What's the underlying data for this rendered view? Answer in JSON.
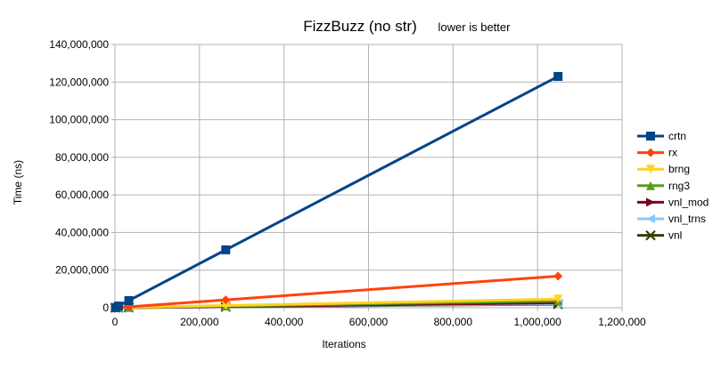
{
  "chart_data": {
    "type": "line",
    "title": "FizzBuzz (no str)",
    "subtitle": "lower is better",
    "xlabel": "Iterations",
    "ylabel": "Time (ns)",
    "xlim": [
      0,
      1200000
    ],
    "ylim": [
      0,
      140000000
    ],
    "x_ticks": [
      "0",
      "200,000",
      "400,000",
      "600,000",
      "800,000",
      "1,000,000",
      "1,200,000"
    ],
    "y_ticks": [
      "0",
      "20,000,000",
      "40,000,000",
      "60,000,000",
      "80,000,000",
      "100,000,000",
      "120,000,000",
      "140,000,000"
    ],
    "grid": true,
    "legend_position": "right",
    "x": [
      1024,
      8192,
      32768,
      262144,
      1048576
    ],
    "series": [
      {
        "name": "crtn",
        "color": "#004586",
        "marker": "square",
        "values": [
          120000,
          900000,
          3800000,
          30800000,
          123000000
        ]
      },
      {
        "name": "rx",
        "color": "#ff420e",
        "marker": "diamond",
        "values": [
          20000,
          150000,
          500000,
          4200000,
          16800000
        ]
      },
      {
        "name": "brng",
        "color": "#ffd320",
        "marker": "triangle-down",
        "values": [
          5000,
          40000,
          150000,
          1200000,
          4600000
        ]
      },
      {
        "name": "rng3",
        "color": "#579d1c",
        "marker": "triangle-up",
        "values": [
          4000,
          30000,
          110000,
          900000,
          3600000
        ]
      },
      {
        "name": "vnl_mod",
        "color": "#7e0021",
        "marker": "triangle-right",
        "values": [
          3000,
          22000,
          80000,
          650000,
          2600000
        ]
      },
      {
        "name": "vnl_trns",
        "color": "#83caff",
        "marker": "triangle-left",
        "values": [
          2500,
          20000,
          70000,
          560000,
          2200000
        ]
      },
      {
        "name": "vnl",
        "color": "#314004",
        "marker": "x",
        "values": [
          2000,
          16000,
          60000,
          480000,
          1900000
        ]
      }
    ]
  }
}
